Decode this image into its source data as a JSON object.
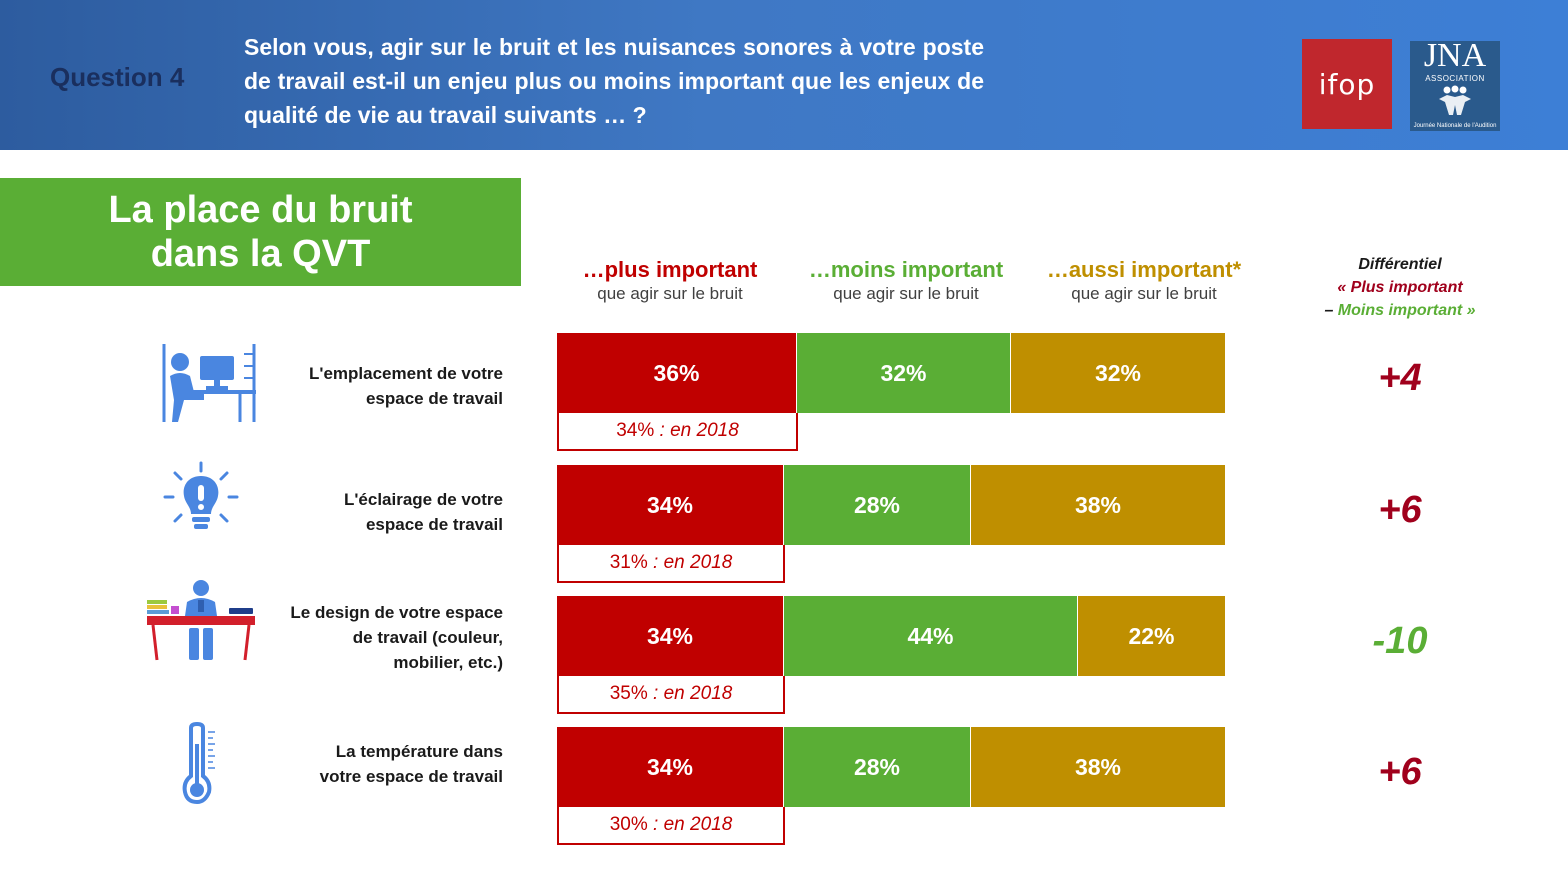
{
  "header": {
    "question_label": "Question 4",
    "question_text": "Selon vous, agir sur le bruit et les nuisances sonores à votre poste de travail  est-il un enjeu plus ou moins important que les enjeux de qualité de vie au travail suivants … ?",
    "logo_ifop": "ifop",
    "logo_jna": "JNA",
    "logo_jna_sub": "ASSOCIATION",
    "logo_jna_foot": "Journée Nationale de l'Audition"
  },
  "title_box": {
    "line1": "La place du bruit",
    "line2": "dans la QVT"
  },
  "columns": [
    {
      "main": "…plus important",
      "sub": "que agir sur le bruit",
      "color": "#c00000"
    },
    {
      "main": "…moins important",
      "sub": "que agir sur le bruit",
      "color": "#5aae35"
    },
    {
      "main": "…aussi important*",
      "sub": "que agir sur le bruit",
      "color": "#bf8f00"
    }
  ],
  "differential_header": {
    "line1": "Différentiel",
    "line2": "« Plus important",
    "line3_dash": "– ",
    "line3": "Moins important »"
  },
  "rows": [
    {
      "label_l1": "L'emplacement de votre",
      "label_l2": "espace de travail",
      "label_l3": "",
      "icon": "desk-worker-icon"
    },
    {
      "label_l1": "L'éclairage de votre",
      "label_l2": "espace de travail",
      "label_l3": "",
      "icon": "lightbulb-icon"
    },
    {
      "label_l1": "Le design de votre espace",
      "label_l2": "de travail (couleur,",
      "label_l3": "mobilier, etc.)",
      "icon": "office-desk-icon"
    },
    {
      "label_l1": "La température dans",
      "label_l2": "votre espace de travail",
      "label_l3": "",
      "icon": "thermometer-icon"
    }
  ],
  "chart_data": {
    "type": "bar",
    "orientation": "horizontal-stacked-100",
    "categories": [
      "L'emplacement de votre espace de travail",
      "L'éclairage de votre espace de travail",
      "Le design de votre espace de travail (couleur, mobilier, etc.)",
      "La température dans votre espace de travail"
    ],
    "series": [
      {
        "name": "…plus important",
        "values": [
          36,
          34,
          34,
          34
        ],
        "labels": [
          "36%",
          "34%",
          "34%",
          "34%"
        ],
        "color": "#c00000"
      },
      {
        "name": "…moins important",
        "values": [
          32,
          28,
          44,
          28
        ],
        "labels": [
          "32%",
          "28%",
          "44%",
          "28%"
        ],
        "color": "#5aae35"
      },
      {
        "name": "…aussi important*",
        "values": [
          32,
          38,
          22,
          38
        ],
        "labels": [
          "32%",
          "38%",
          "22%",
          "38%"
        ],
        "color": "#bf8f00"
      }
    ],
    "previous_2018": {
      "values": [
        34,
        31,
        35,
        30
      ],
      "pct_labels": [
        "34%",
        "31%",
        "35%",
        "30%"
      ],
      "suffix": " : en 2018"
    },
    "differential": {
      "values": [
        4,
        6,
        -10,
        6
      ],
      "labels": [
        "+4",
        "+6",
        "-10",
        "+6"
      ]
    },
    "colors": {
      "positive": "#a0001c",
      "negative": "#5aae35"
    }
  }
}
